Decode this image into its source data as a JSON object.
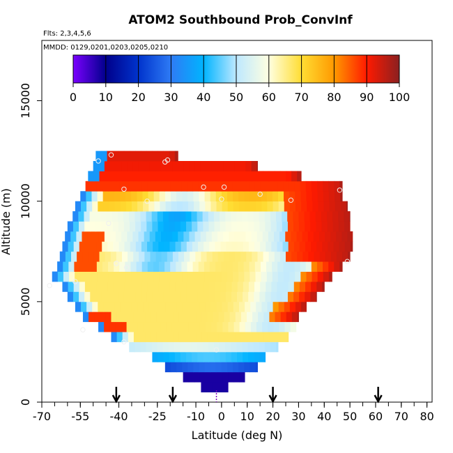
{
  "chart_data": {
    "type": "heatmap",
    "title": "ATOM2 Southbound Prob_ConvInf",
    "flights_label": "Flts: 2,3,4,5,6",
    "dates_label": "MMDD: 0129,0201,0203,0205,0210",
    "xlabel": "Latitude (deg N)",
    "ylabel": "Altitude (m)",
    "xlim": [
      -70,
      82
    ],
    "ylim": [
      0,
      18000
    ],
    "x_tick_labels": [
      "-70",
      "-55",
      "-40",
      "-25",
      "-10",
      "0",
      "10",
      "20",
      "30",
      "40",
      "50",
      "60",
      "70",
      "80"
    ],
    "x_tick_values": [
      -70,
      -55,
      -40,
      -25,
      -10,
      0,
      10,
      20,
      30,
      40,
      50,
      60,
      70,
      80
    ],
    "y_tick_labels": [
      "0",
      "5000",
      "10000",
      "15000"
    ],
    "y_tick_values": [
      0,
      5000,
      10000,
      15000
    ],
    "colorbar": {
      "min": 0,
      "max": 100,
      "tick_labels": [
        "0",
        "10",
        "20",
        "30",
        "40",
        "50",
        "60",
        "70",
        "80",
        "90",
        "100"
      ],
      "tick_values": [
        0,
        10,
        20,
        30,
        40,
        50,
        60,
        70,
        80,
        90,
        100
      ],
      "colors": [
        "#7b00ff",
        "#00008b",
        "#0033cc",
        "#2e7bf5",
        "#00b4ff",
        "#bde8ff",
        "#ffffe0",
        "#ffdd33",
        "#ff9900",
        "#ff1a00",
        "#8b2020"
      ]
    },
    "altitude_bins_m": [
      500,
      1000,
      1500,
      2000,
      2500,
      3000,
      3500,
      4000,
      4500,
      5000,
      5500,
      6000,
      6500,
      7000,
      7500,
      8000,
      8500,
      9000,
      9500,
      10000,
      10500,
      11000,
      11500,
      12000
    ],
    "extent_by_altitude": [
      {
        "alt": 500,
        "lat_min": -8,
        "lat_max": 2.5
      },
      {
        "alt": 1000,
        "lat_min": -15,
        "lat_max": 9
      },
      {
        "alt": 1500,
        "lat_min": -22,
        "lat_max": 14
      },
      {
        "alt": 2000,
        "lat_min": -27,
        "lat_max": 17
      },
      {
        "alt": 2500,
        "lat_min": -36,
        "lat_max": 22
      },
      {
        "alt": 3000,
        "lat_min": -43,
        "lat_max": 26
      },
      {
        "alt": 3500,
        "lat_min": -48,
        "lat_max": 29
      },
      {
        "alt": 4000,
        "lat_min": -54,
        "lat_max": 30
      },
      {
        "alt": 4500,
        "lat_min": -57,
        "lat_max": 33
      },
      {
        "alt": 5000,
        "lat_min": -60,
        "lat_max": 37
      },
      {
        "alt": 5500,
        "lat_min": -62,
        "lat_max": 40
      },
      {
        "alt": 6000,
        "lat_min": -66,
        "lat_max": 43
      },
      {
        "alt": 6500,
        "lat_min": -64,
        "lat_max": 47
      },
      {
        "alt": 7000,
        "lat_min": -63,
        "lat_max": 50
      },
      {
        "alt": 7500,
        "lat_min": -62,
        "lat_max": 51
      },
      {
        "alt": 8000,
        "lat_min": -61,
        "lat_max": 51
      },
      {
        "alt": 8500,
        "lat_min": -60,
        "lat_max": 50
      },
      {
        "alt": 9000,
        "lat_min": -58,
        "lat_max": 50
      },
      {
        "alt": 9500,
        "lat_min": -57,
        "lat_max": 49
      },
      {
        "alt": 10000,
        "lat_min": -55,
        "lat_max": 47
      },
      {
        "alt": 10500,
        "lat_min": -53,
        "lat_max": 47
      },
      {
        "alt": 11000,
        "lat_min": -52,
        "lat_max": 31
      },
      {
        "alt": 11500,
        "lat_min": -50,
        "lat_max": 14
      },
      {
        "alt": 12000,
        "lat_min": -49,
        "lat_max": -17
      }
    ],
    "value_pattern": "Low (blue) along left/southern edge near -50 to -40 and in bottom band below 2000 m; ~60-70 (yellow/orange) in mid-troposphere interior 3000-7000 m; 80-100 (red/dark red) at top above 10000 m and along right edge 30-50 N.",
    "sample_markers": [
      {
        "lat": -43,
        "alt": 12300
      },
      {
        "lat": -48,
        "alt": 12000
      },
      {
        "lat": -22,
        "alt": 11950
      },
      {
        "lat": -21,
        "alt": 12050
      },
      {
        "lat": -38,
        "alt": 10600
      },
      {
        "lat": -7,
        "alt": 10700
      },
      {
        "lat": 1,
        "alt": 10700
      },
      {
        "lat": 15,
        "alt": 10350
      },
      {
        "lat": 46,
        "alt": 10550
      },
      {
        "lat": -29,
        "alt": 10000
      },
      {
        "lat": 0,
        "alt": 10100
      },
      {
        "lat": 27,
        "alt": 10050
      },
      {
        "lat": -44,
        "alt": 8900
      },
      {
        "lat": -41,
        "alt": 6900
      },
      {
        "lat": -37,
        "alt": 6700
      },
      {
        "lat": 49,
        "alt": 7000
      },
      {
        "lat": -67,
        "alt": 5800
      },
      {
        "lat": -57,
        "alt": 6000
      },
      {
        "lat": -54,
        "alt": 3600
      },
      {
        "lat": -38,
        "alt": 3000
      },
      {
        "lat": -2,
        "alt": 2600
      }
    ],
    "arrows_lat": [
      -41,
      -19,
      20,
      61
    ],
    "surface_marker_lat": -2
  }
}
